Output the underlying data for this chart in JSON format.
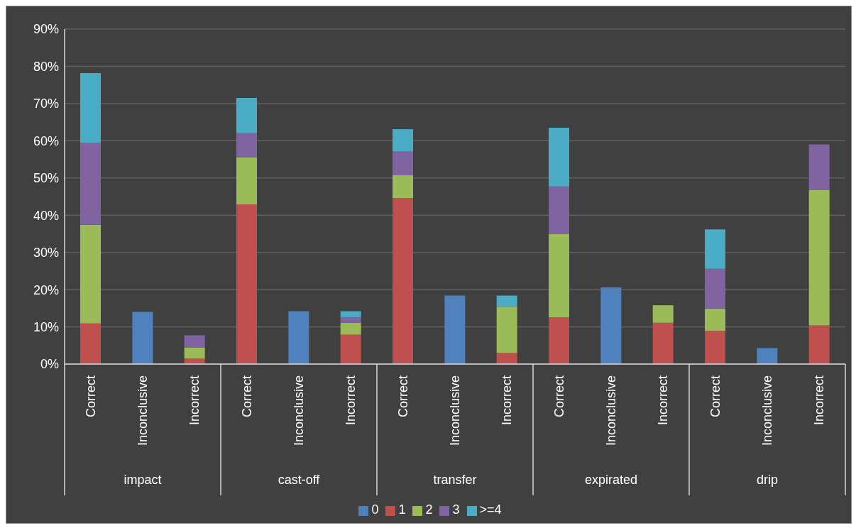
{
  "chart_data": {
    "type": "bar",
    "stacked": true,
    "categories": [
      "Correct",
      "Inconclusive",
      "Incorrect",
      "Correct",
      "Inconclusive",
      "Incorrect",
      "Correct",
      "Inconclusive",
      "Incorrect",
      "Correct",
      "Inconclusive",
      "Incorrect",
      "Correct",
      "Inconclusive",
      "Incorrect"
    ],
    "annotations": [
      "impact",
      "cast-off",
      "transfer",
      "expirated",
      "drip"
    ],
    "series": [
      {
        "name": "0",
        "color": "#4f81bd",
        "values": [
          null,
          14.0,
          null,
          null,
          14.2,
          null,
          null,
          18.4,
          null,
          null,
          20.6,
          null,
          null,
          4.3,
          null
        ]
      },
      {
        "name": "1",
        "color": "#c0504d",
        "values": [
          10.9,
          null,
          1.5,
          42.9,
          null,
          7.9,
          44.6,
          null,
          3.0,
          12.6,
          null,
          11.1,
          8.9,
          null,
          10.4
        ]
      },
      {
        "name": "2",
        "color": "#9bbb59",
        "values": [
          26.5,
          null,
          3.0,
          12.7,
          null,
          3.2,
          6.1,
          null,
          12.4,
          22.3,
          null,
          4.7,
          6.0,
          null,
          36.4
        ]
      },
      {
        "name": "3",
        "color": "#8064a2",
        "values": [
          22.0,
          null,
          3.2,
          6.4,
          null,
          1.5,
          6.4,
          null,
          null,
          12.8,
          null,
          null,
          10.7,
          null,
          12.2
        ]
      },
      {
        "name": ">=4",
        "color": "#4bacc6",
        "values": [
          18.8,
          null,
          null,
          9.5,
          null,
          1.6,
          6.0,
          null,
          3.0,
          15.8,
          null,
          null,
          10.6,
          null,
          null
        ]
      }
    ],
    "ylim": [
      0,
      90
    ],
    "yticks": [
      {
        "value": 0,
        "label": "0%"
      },
      {
        "value": 10,
        "label": "10%"
      },
      {
        "value": 20,
        "label": "20%"
      },
      {
        "value": 30,
        "label": "30%"
      },
      {
        "value": 40,
        "label": "40%"
      },
      {
        "value": 50,
        "label": "50%"
      },
      {
        "value": 60,
        "label": "60%"
      },
      {
        "value": 70,
        "label": "70%"
      },
      {
        "value": 80,
        "label": "80%"
      },
      {
        "value": 90,
        "label": "90%"
      }
    ],
    "grid": "y",
    "legend": "bottom"
  }
}
